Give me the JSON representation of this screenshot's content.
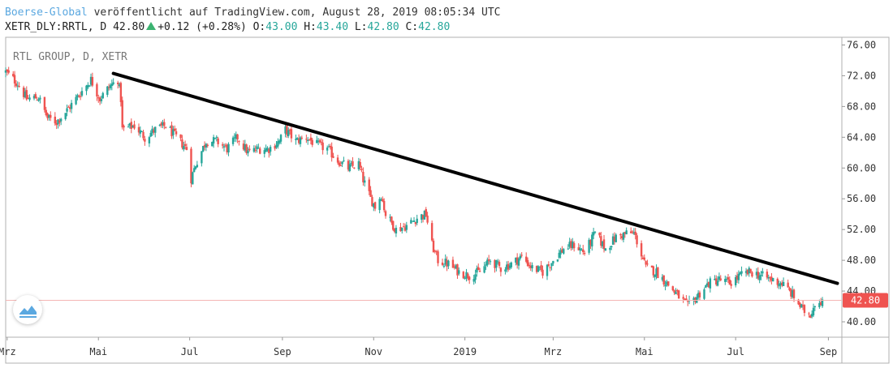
{
  "header": {
    "source": "Boerse-Global",
    "published": "veröffentlicht auf TradingView.com, August 28, 2019 08:05:34 UTC",
    "symbol": "XETR_DLY:RRTL, D",
    "last": "42.80",
    "change": "+0.12 (+0.28%)",
    "o_label": "O:",
    "o_value": "43.00",
    "h_label": "H:",
    "h_value": "43.40",
    "l_label": "L:",
    "l_value": "42.80",
    "c_label": "C:",
    "c_value": "42.80"
  },
  "colors": {
    "up": "#26a69a",
    "down": "#ef5350",
    "trendline": "#000000",
    "price_line": "#f4b6b4",
    "price_badge": "#ef5350"
  },
  "chart_data": {
    "type": "candlestick",
    "title": "RTL GROUP, D, XETR",
    "xlabel": "",
    "ylabel": "",
    "x_ticks": [
      "Mrz",
      "Mai",
      "Jul",
      "Sep",
      "Nov",
      "2019",
      "Mrz",
      "Mai",
      "Jul",
      "Sep"
    ],
    "y_ticks": [
      "40.00",
      "44.00",
      "48.00",
      "52.00",
      "56.00",
      "60.00",
      "64.00",
      "68.00",
      "72.00",
      "76.00"
    ],
    "ylim": [
      38.0,
      77.0
    ],
    "xlim": [
      "2018-02-28",
      "2019-09-10"
    ],
    "grid": false,
    "last_price": 42.8,
    "last_price_label": "42.80",
    "trendline": {
      "start": {
        "date": "2018-05-11",
        "value": 72.3
      },
      "end": {
        "date": "2019-09-07",
        "value": 45.0
      }
    },
    "price_path": [
      [
        "2018-02-28",
        72.5
      ],
      [
        "2018-03-08",
        71.0
      ],
      [
        "2018-03-14",
        69.0
      ],
      [
        "2018-03-22",
        69.2
      ],
      [
        "2018-03-28",
        66.5
      ],
      [
        "2018-04-03",
        66.0
      ],
      [
        "2018-04-10",
        67.5
      ],
      [
        "2018-04-18",
        69.5
      ],
      [
        "2018-04-26",
        71.5
      ],
      [
        "2018-05-02",
        69.0
      ],
      [
        "2018-05-08",
        70.5
      ],
      [
        "2018-05-14",
        71.5
      ],
      [
        "2018-05-16",
        69.0
      ],
      [
        "2018-05-17",
        65.0
      ],
      [
        "2018-05-25",
        65.5
      ],
      [
        "2018-06-01",
        64.0
      ],
      [
        "2018-06-08",
        65.0
      ],
      [
        "2018-06-15",
        65.5
      ],
      [
        "2018-06-22",
        64.0
      ],
      [
        "2018-06-29",
        62.5
      ],
      [
        "2018-07-01",
        58.0
      ],
      [
        "2018-07-05",
        60.5
      ],
      [
        "2018-07-12",
        63.5
      ],
      [
        "2018-07-19",
        63.5
      ],
      [
        "2018-07-26",
        62.5
      ],
      [
        "2018-08-02",
        64.0
      ],
      [
        "2018-08-09",
        62.0
      ],
      [
        "2018-08-16",
        62.5
      ],
      [
        "2018-08-23",
        62.5
      ],
      [
        "2018-08-30",
        63.5
      ],
      [
        "2018-09-03",
        65.0
      ],
      [
        "2018-09-10",
        63.5
      ],
      [
        "2018-09-17",
        64.0
      ],
      [
        "2018-09-24",
        63.0
      ],
      [
        "2018-10-01",
        62.5
      ],
      [
        "2018-10-08",
        61.0
      ],
      [
        "2018-10-15",
        60.0
      ],
      [
        "2018-10-22",
        60.5
      ],
      [
        "2018-10-25",
        58.5
      ],
      [
        "2018-10-30",
        56.0
      ],
      [
        "2018-11-02",
        55.0
      ],
      [
        "2018-11-06",
        56.5
      ],
      [
        "2018-11-09",
        54.0
      ],
      [
        "2018-11-16",
        52.0
      ],
      [
        "2018-11-23",
        52.5
      ],
      [
        "2018-11-30",
        53.5
      ],
      [
        "2018-12-06",
        54.0
      ],
      [
        "2018-12-10",
        50.0
      ],
      [
        "2018-12-14",
        48.0
      ],
      [
        "2018-12-21",
        47.5
      ],
      [
        "2018-12-28",
        46.5
      ],
      [
        "2019-01-04",
        46.0
      ],
      [
        "2019-01-11",
        46.5
      ],
      [
        "2019-01-18",
        48.0
      ],
      [
        "2019-01-25",
        47.0
      ],
      [
        "2019-02-01",
        47.5
      ],
      [
        "2019-02-08",
        48.5
      ],
      [
        "2019-02-15",
        47.0
      ],
      [
        "2019-02-22",
        46.5
      ],
      [
        "2019-03-01",
        48.0
      ],
      [
        "2019-03-08",
        49.5
      ],
      [
        "2019-03-15",
        50.0
      ],
      [
        "2019-03-22",
        49.0
      ],
      [
        "2019-03-29",
        51.5
      ],
      [
        "2019-04-05",
        49.5
      ],
      [
        "2019-04-12",
        51.0
      ],
      [
        "2019-04-19",
        51.5
      ],
      [
        "2019-04-24",
        51.5
      ],
      [
        "2019-04-26",
        50.5
      ],
      [
        "2019-05-02",
        47.0
      ],
      [
        "2019-05-09",
        46.5
      ],
      [
        "2019-05-16",
        45.0
      ],
      [
        "2019-05-23",
        43.5
      ],
      [
        "2019-05-30",
        42.0
      ],
      [
        "2019-06-06",
        43.5
      ],
      [
        "2019-06-13",
        45.0
      ],
      [
        "2019-06-20",
        45.5
      ],
      [
        "2019-06-27",
        45.0
      ],
      [
        "2019-07-04",
        46.0
      ],
      [
        "2019-07-11",
        46.5
      ],
      [
        "2019-07-18",
        46.0
      ],
      [
        "2019-07-25",
        45.5
      ],
      [
        "2019-08-01",
        45.0
      ],
      [
        "2019-08-08",
        43.5
      ],
      [
        "2019-08-15",
        41.5
      ],
      [
        "2019-08-20",
        41.0
      ],
      [
        "2019-08-23",
        42.5
      ],
      [
        "2019-08-28",
        42.8
      ]
    ]
  }
}
